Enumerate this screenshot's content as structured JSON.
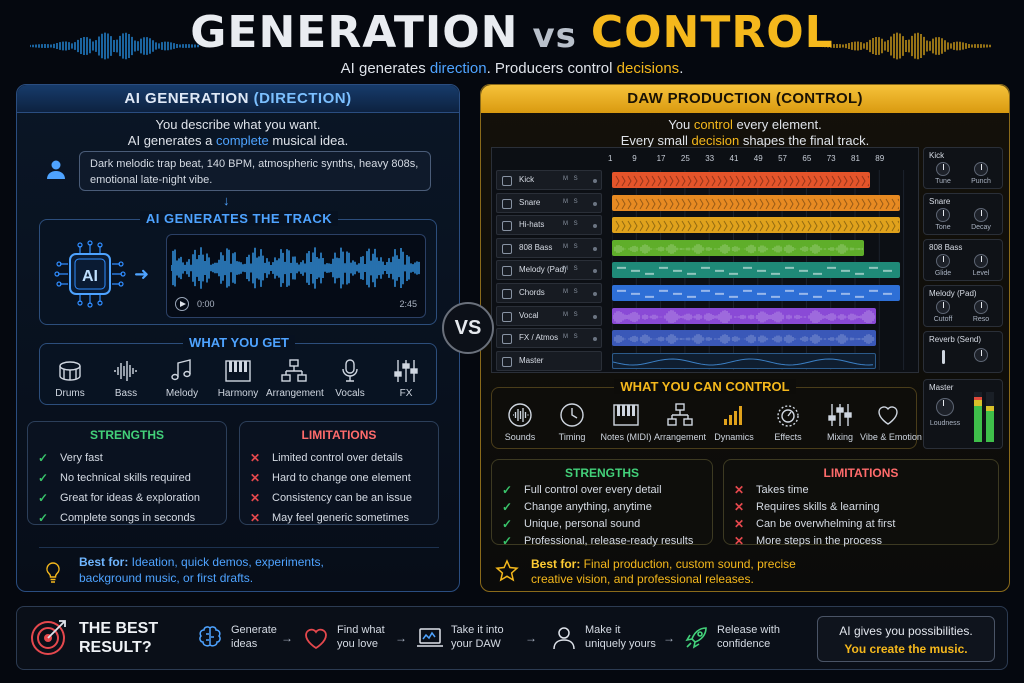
{
  "header": {
    "title_left": "GENERATION",
    "title_vs": "vs",
    "title_right": "CONTROL",
    "subtitle_1": "AI generates ",
    "subtitle_2": "direction",
    "subtitle_3": ". Producers control ",
    "subtitle_4": "decisions",
    "subtitle_5": "."
  },
  "left": {
    "heading_1": "AI GENERATION ",
    "heading_2": "(DIRECTION)",
    "intro_line1": "You describe what you want.",
    "intro_line2_a": "AI generates a ",
    "intro_line2_b": "complete",
    "intro_line2_c": " musical idea.",
    "prompt_text": "Dark melodic trap beat, 140 BPM, atmospheric synths, heavy 808s, emotional late-night vibe.",
    "generates_title": "AI GENERATES THE TRACK",
    "chip_label": "AI",
    "time_start": "0:00",
    "time_end": "2:45",
    "what_you_get_title": "WHAT YOU GET",
    "what_you_get": [
      "Drums",
      "Bass",
      "Melody",
      "Harmony",
      "Arrangement",
      "Vocals",
      "FX"
    ],
    "strengths_title": "STRENGTHS",
    "strengths": [
      "Very fast",
      "No technical skills required",
      "Great for ideas & exploration",
      "Complete songs in seconds"
    ],
    "limitations_title": "LIMITATIONS",
    "limitations": [
      "Limited control over details",
      "Hard to change one element",
      "Consistency can be an issue",
      "May feel generic sometimes"
    ],
    "best_for_label": "Best for:",
    "best_for_line1": " Ideation, quick demos, experiments,",
    "best_for_line2": "background music, or first drafts."
  },
  "vs_badge": "VS",
  "right": {
    "heading": "DAW PRODUCTION (CONTROL)",
    "intro_line1_a": "You ",
    "intro_line1_b": "control",
    "intro_line1_c": " every element.",
    "intro_line2_a": "Every small ",
    "intro_line2_b": "decision",
    "intro_line2_c": " shapes the final track.",
    "ruler": [
      "1",
      "9",
      "17",
      "25",
      "33",
      "41",
      "49",
      "57",
      "65",
      "73",
      "81",
      "89"
    ],
    "track_ms": "M S",
    "tracks": [
      {
        "name": "Kick",
        "color": "#e4542a",
        "end": 0.86
      },
      {
        "name": "Snare",
        "color": "#e78a22",
        "end": 0.96
      },
      {
        "name": "Hi-hats",
        "color": "#e0a21c",
        "end": 0.96
      },
      {
        "name": "808 Bass",
        "color": "#5fae2a",
        "end": 0.84
      },
      {
        "name": "Melody (Pad)",
        "color": "#1f8a78",
        "end": 0.96
      },
      {
        "name": "Chords",
        "color": "#2e6fd6",
        "end": 0.96
      },
      {
        "name": "Vocal",
        "color": "#8a4ad6",
        "end": 0.88
      },
      {
        "name": "FX / Atmos",
        "color": "#3a58b8",
        "end": 0.88
      },
      {
        "name": "Master",
        "color": "#2b5a8a",
        "end": 0.88
      }
    ],
    "inspector": [
      {
        "name": "Kick",
        "k1": "Tune",
        "k2": "Punch"
      },
      {
        "name": "Snare",
        "k1": "Tone",
        "k2": "Decay"
      },
      {
        "name": "808 Bass",
        "k1": "Glide",
        "k2": "Level"
      },
      {
        "name": "Melody (Pad)",
        "k1": "Cutoff",
        "k2": "Reso"
      },
      {
        "name": "Reverb (Send)",
        "k1": "",
        "k2": ""
      }
    ],
    "master_name": "Master",
    "master_knob": "Loudness",
    "what_you_control_title": "WHAT YOU CAN CONTROL",
    "what_you_control": [
      "Sounds",
      "Timing",
      "Notes (MIDI)",
      "Arrangement",
      "Dynamics",
      "Effects",
      "Mixing",
      "Vibe & Emotion"
    ],
    "strengths_title": "STRENGTHS",
    "strengths": [
      "Full control over every detail",
      "Change anything, anytime",
      "Unique, personal sound",
      "Professional, release-ready results"
    ],
    "limitations_title": "LIMITATIONS",
    "limitations": [
      "Takes time",
      "Requires skills & learning",
      "Can be overwhelming at first",
      "More steps in the process"
    ],
    "best_for_label": "Best for:",
    "best_for_line1": " Final production, custom sound, precise",
    "best_for_line2": "creative vision, and professional releases."
  },
  "bottom": {
    "best_result_line1": "THE BEST",
    "best_result_line2": "RESULT?",
    "steps": [
      {
        "l1": "Generate",
        "l2": "ideas"
      },
      {
        "l1": "Find what",
        "l2": "you love"
      },
      {
        "l1": "Take it into",
        "l2": "your DAW"
      },
      {
        "l1": "Make it",
        "l2": "uniquely yours"
      },
      {
        "l1": "Release with",
        "l2": "confidence"
      }
    ],
    "closing_line1": "AI gives you possibilities.",
    "closing_line2": "You create the music."
  },
  "colors": {
    "ai_blue": "#4ea3ff",
    "daw_gold": "#f5b81c",
    "check_green": "#39c46a",
    "cross_red": "#e5484d",
    "strengths_green": "#43d17a",
    "limitations_red": "#ff6b6b"
  }
}
